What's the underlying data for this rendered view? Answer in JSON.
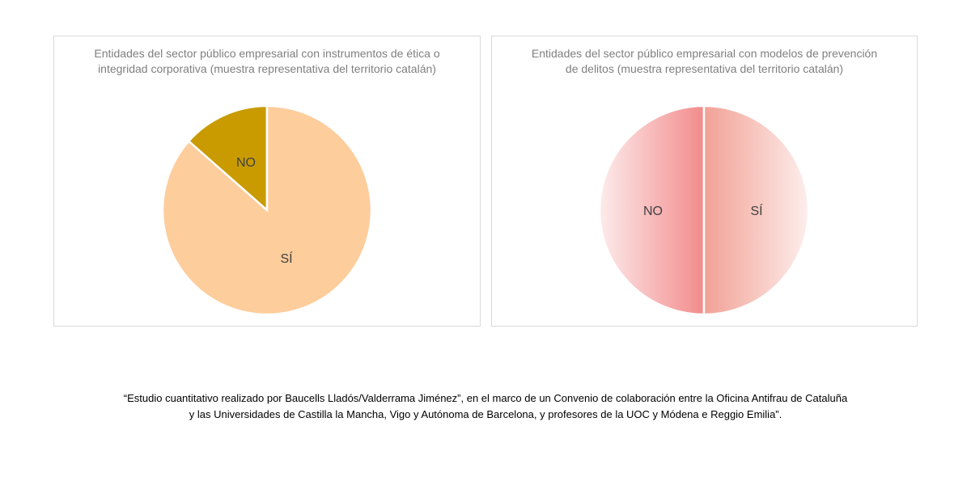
{
  "chart_data": [
    {
      "type": "pie",
      "title": "Entidades del sector público empresarial con instrumentos de ética o integridad corporativa (muestra representativa del territorio catalán)",
      "slices": [
        {
          "label": "NO",
          "value": 13.5,
          "color": "#c99b00"
        },
        {
          "label": "SÍ",
          "value": 86.5,
          "color": "#fecd9c"
        }
      ]
    },
    {
      "type": "pie",
      "title": "Entidades del sector público empresarial con modelos de prevención de delitos (muestra representativa del territorio catalán)",
      "slices": [
        {
          "label": "NO",
          "value": 50,
          "color": "#f28b8b"
        },
        {
          "label": "SÍ",
          "value": 50,
          "color": "#f1a195"
        }
      ]
    }
  ],
  "caption": {
    "line1": "“Estudio cuantitativo realizado por Baucells Lladós/Valderrama Jiménez”, en el marco de un Convenio de colaboración entre la Oficina Antifrau de Cataluña",
    "line2": "y las Universidades de Castilla la Mancha, Vigo y Autónoma de Barcelona, y profesores de la UOC y Módena e Reggio Emilia”."
  }
}
